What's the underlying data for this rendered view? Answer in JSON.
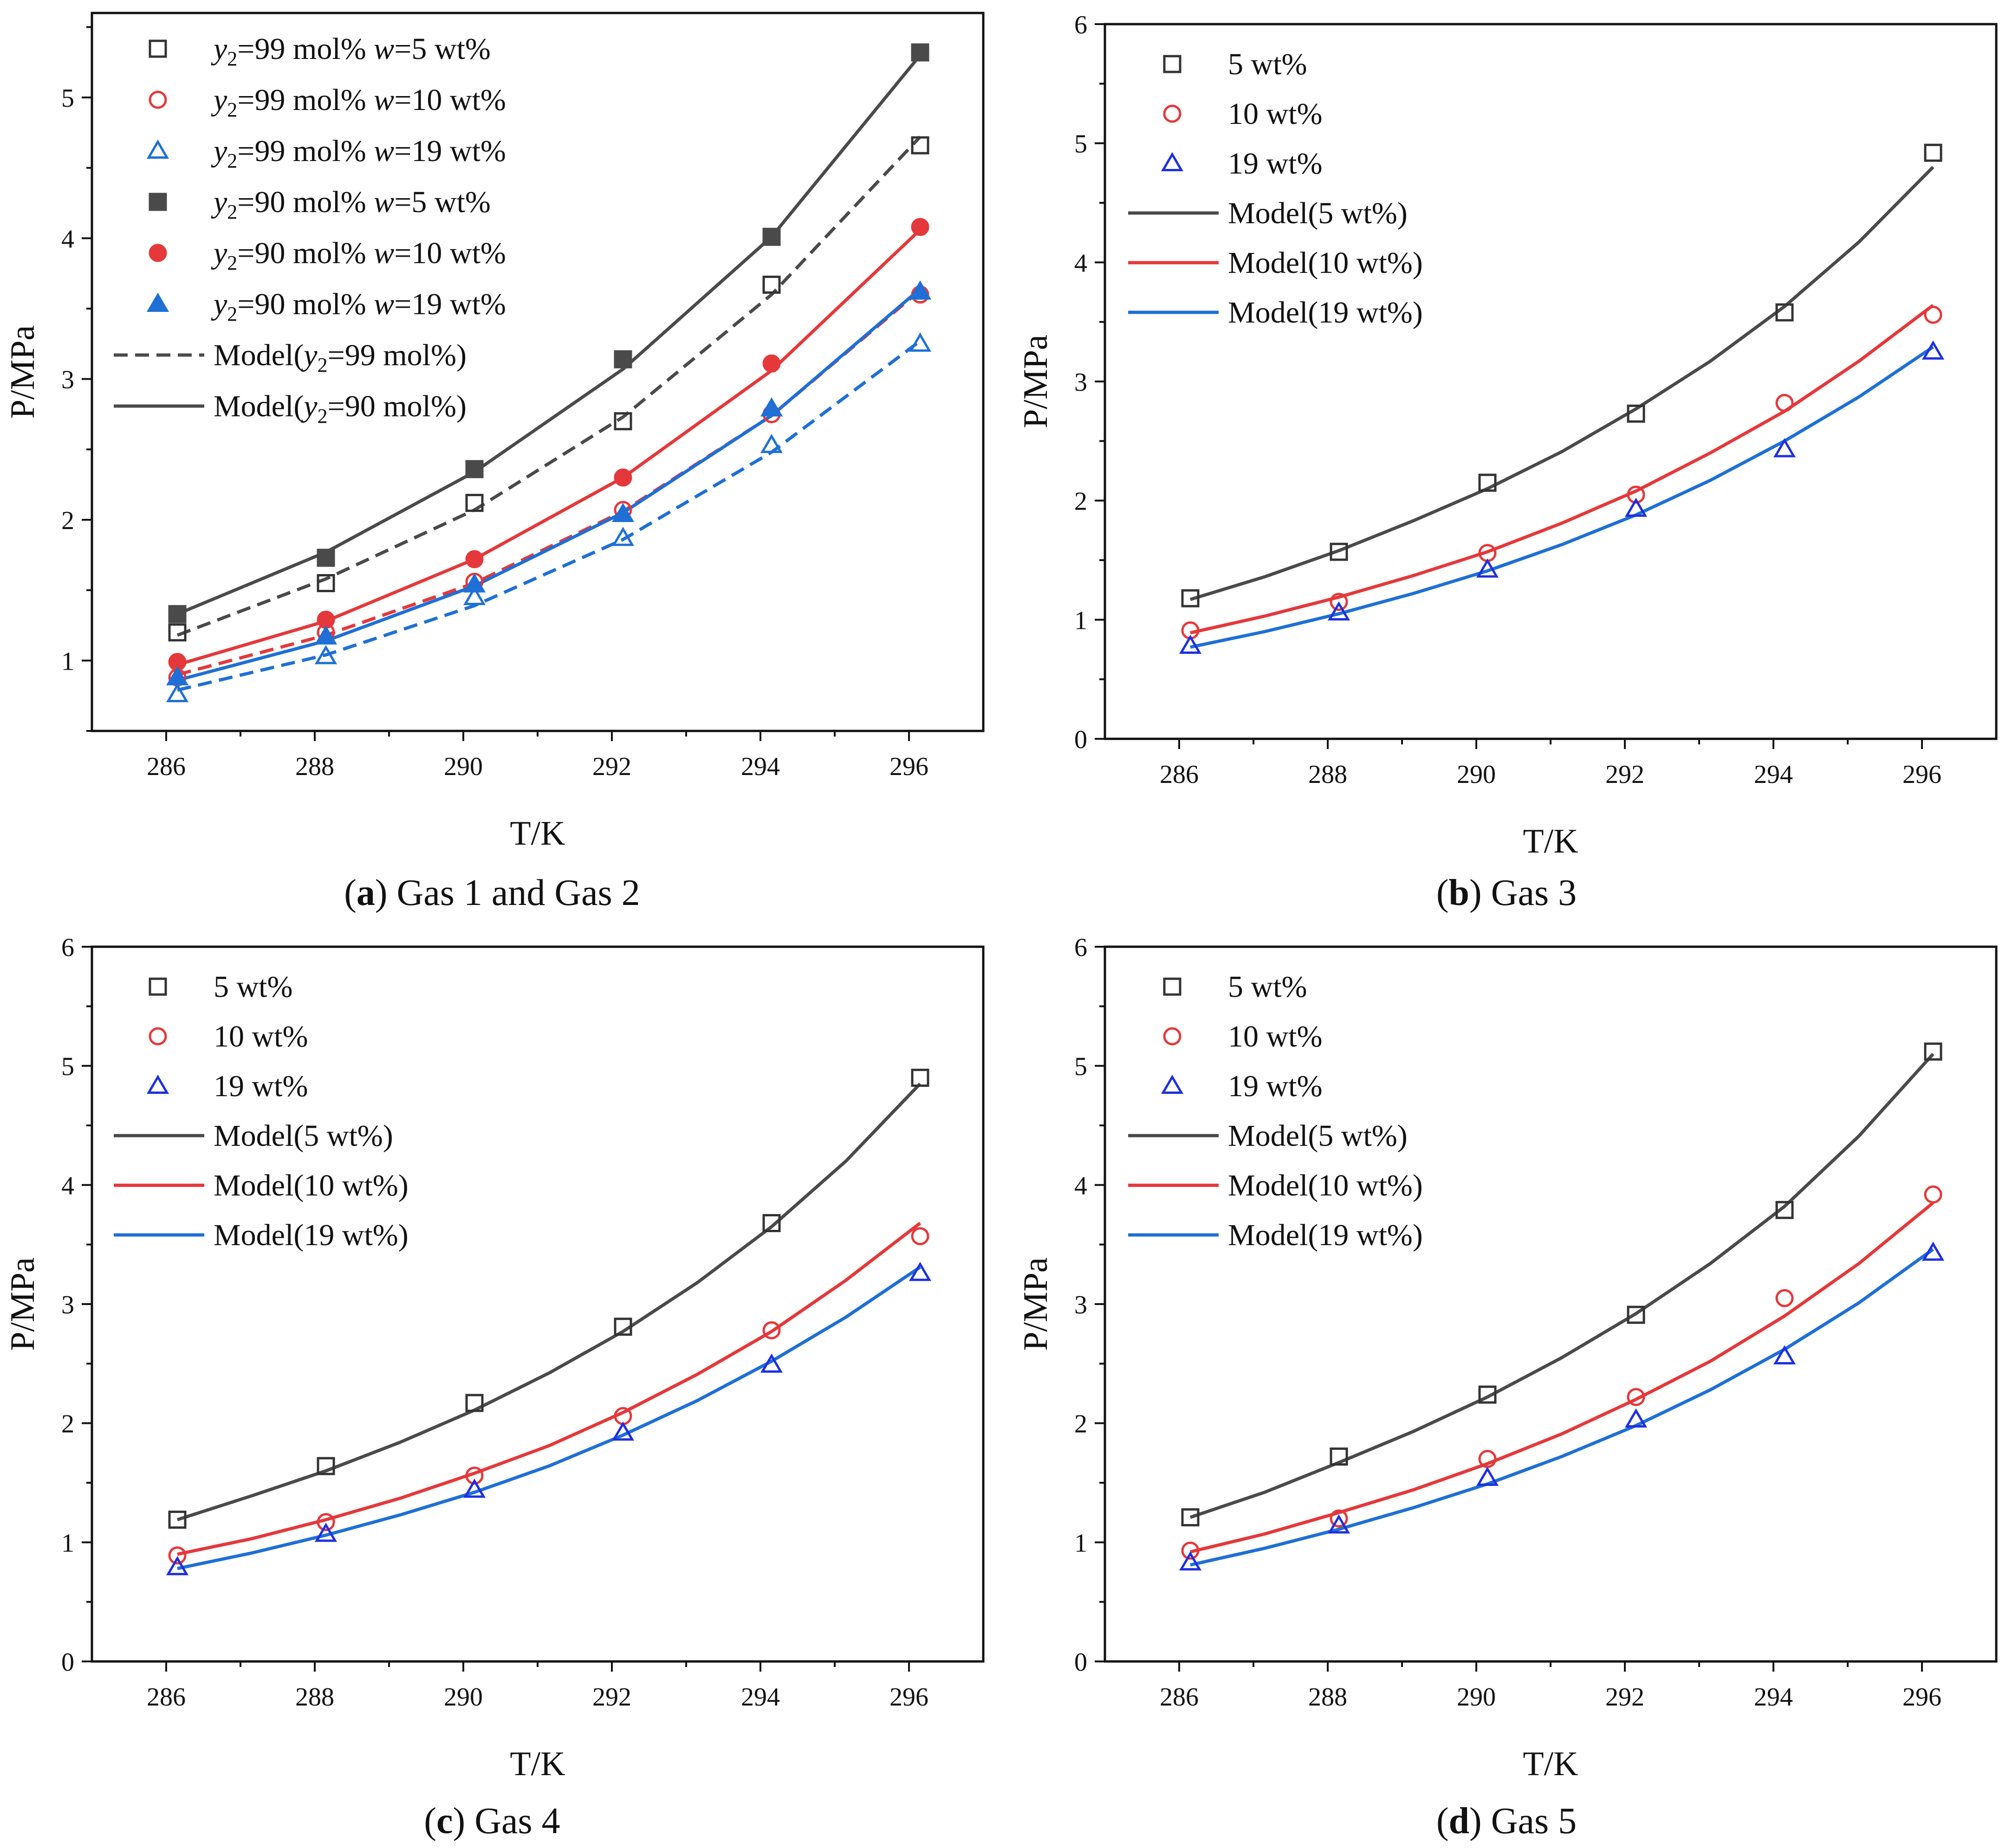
{
  "figure": {
    "charts": [
      {
        "id": "a",
        "caption_letter": "a",
        "caption_text": " Gas 1 and Gas 2"
      },
      {
        "id": "b",
        "caption_letter": "b",
        "caption_text": " Gas 3"
      },
      {
        "id": "c",
        "caption_letter": "c",
        "caption_text": " Gas 4"
      },
      {
        "id": "d",
        "caption_letter": "d",
        "caption_text": " Gas 5"
      }
    ]
  },
  "colors": {
    "black": "#222222",
    "dark_gray": "#4a4a4a",
    "red": "#e5383b",
    "blue": "#1f6fd6",
    "marker_blue": "#1f2fe0"
  },
  "chart_data": [
    {
      "type": "line",
      "panel": "a",
      "xlabel": "T/K",
      "ylabel": "P/MPa",
      "xlim": [
        285,
        297
      ],
      "ylim": [
        0.5,
        5.6
      ],
      "xticks": [
        286,
        288,
        290,
        292,
        294,
        296
      ],
      "yticks": [
        1,
        2,
        3,
        4,
        5
      ],
      "grid": false,
      "legend_position": "top-left",
      "series": [
        {
          "name": "y2=99 mol% w=5 wt%",
          "name_parts": [
            "y",
            "2",
            "=99 mol% ",
            "w",
            "=5 wt%"
          ],
          "kind": "marker",
          "marker": "square",
          "filled": false,
          "color": "#333333",
          "x": [
            286.15,
            288.15,
            290.15,
            292.15,
            294.15,
            296.15
          ],
          "y": [
            1.2,
            1.55,
            2.12,
            2.7,
            3.67,
            4.66
          ]
        },
        {
          "name": "y2=99 mol% w=10 wt%",
          "name_parts": [
            "y",
            "2",
            "=99 mol% ",
            "w",
            "=10 wt%"
          ],
          "kind": "marker",
          "marker": "circle",
          "filled": false,
          "color": "#e5383b",
          "x": [
            286.15,
            288.15,
            290.15,
            292.15,
            294.15,
            296.15
          ],
          "y": [
            0.88,
            1.2,
            1.56,
            2.07,
            2.75,
            3.6
          ]
        },
        {
          "name": "y2=99 mol% w=19 wt%",
          "name_parts": [
            "y",
            "2",
            "=99 mol% ",
            "w",
            "=19 wt%"
          ],
          "kind": "marker",
          "marker": "triangle",
          "filled": false,
          "color": "#1f6fd6",
          "x": [
            286.15,
            288.15,
            290.15,
            292.15,
            294.15,
            296.15
          ],
          "y": [
            0.76,
            1.03,
            1.45,
            1.87,
            2.53,
            3.25
          ]
        },
        {
          "name": "y2=90 mol% w=5 wt%",
          "name_parts": [
            "y",
            "2",
            "=90 mol% ",
            "w",
            "=5 wt%"
          ],
          "kind": "marker",
          "marker": "square",
          "filled": true,
          "color": "#4a4a4a",
          "x": [
            286.15,
            288.15,
            290.15,
            292.15,
            294.15,
            296.15
          ],
          "y": [
            1.33,
            1.73,
            2.36,
            3.14,
            4.01,
            5.32
          ]
        },
        {
          "name": "y2=90 mol% w=10 wt%",
          "name_parts": [
            "y",
            "2",
            "=90 mol% ",
            "w",
            "=10 wt%"
          ],
          "kind": "marker",
          "marker": "circle",
          "filled": true,
          "color": "#e5383b",
          "x": [
            286.15,
            288.15,
            290.15,
            292.15,
            294.15,
            296.15
          ],
          "y": [
            0.99,
            1.29,
            1.72,
            2.3,
            3.11,
            4.08
          ]
        },
        {
          "name": "y2=90 mol% w=19 wt%",
          "name_parts": [
            "y",
            "2",
            "=90 mol% ",
            "w",
            "=19 wt%"
          ],
          "kind": "marker",
          "marker": "triangle",
          "filled": true,
          "color": "#1f6fd6",
          "x": [
            286.15,
            288.15,
            290.15,
            292.15,
            294.15,
            296.15
          ],
          "y": [
            0.88,
            1.17,
            1.54,
            2.04,
            2.79,
            3.62
          ]
        },
        {
          "name": "Model(y2=99 mol%)",
          "name_parts": [
            "Model(",
            "y",
            "2",
            "=99 mol%)",
            ""
          ],
          "kind": "line",
          "dash": true,
          "color": "#4a4a4a",
          "x": [
            286.15,
            288.15,
            290.15,
            292.15,
            294.15,
            296.15
          ],
          "y": [
            1.18,
            1.58,
            2.07,
            2.73,
            3.6,
            4.72
          ]
        },
        {
          "name": "Model(y2=90 mol%)",
          "name_parts": [
            "Model(",
            "y",
            "2",
            "=90 mol%)",
            ""
          ],
          "kind": "line",
          "dash": false,
          "color": "#4a4a4a",
          "x": [
            286.15,
            288.15,
            290.15,
            292.15,
            294.15,
            296.15
          ],
          "y": [
            1.33,
            1.77,
            2.34,
            3.07,
            4.01,
            5.3
          ]
        },
        {
          "name": "",
          "kind": "line",
          "dash": true,
          "color": "#e5383b",
          "in_legend": false,
          "x": [
            286.15,
            288.15,
            290.15,
            292.15,
            294.15,
            296.15
          ],
          "y": [
            0.9,
            1.18,
            1.55,
            2.06,
            2.74,
            3.63
          ]
        },
        {
          "name": "",
          "kind": "line",
          "dash": false,
          "color": "#e5383b",
          "in_legend": false,
          "x": [
            286.15,
            288.15,
            290.15,
            292.15,
            294.15,
            296.15
          ],
          "y": [
            0.97,
            1.28,
            1.72,
            2.3,
            3.06,
            4.06
          ]
        },
        {
          "name": "",
          "kind": "line",
          "dash": true,
          "color": "#1f6fd6",
          "in_legend": false,
          "x": [
            286.15,
            288.15,
            290.15,
            292.15,
            294.15,
            296.15
          ],
          "y": [
            0.79,
            1.04,
            1.39,
            1.86,
            2.48,
            3.27
          ]
        },
        {
          "name": "",
          "kind": "line",
          "dash": false,
          "color": "#1f6fd6",
          "in_legend": false,
          "x": [
            286.15,
            288.15,
            290.15,
            292.15,
            294.15,
            296.15
          ],
          "y": [
            0.86,
            1.14,
            1.53,
            2.05,
            2.74,
            3.64
          ]
        }
      ]
    },
    {
      "type": "line",
      "panel": "b",
      "xlabel": "T/K",
      "ylabel": "P/MPa",
      "xlim": [
        285,
        297
      ],
      "ylim": [
        0,
        6
      ],
      "xticks": [
        286,
        288,
        290,
        292,
        294,
        296
      ],
      "yticks": [
        0,
        1,
        2,
        3,
        4,
        5,
        6
      ],
      "grid": false,
      "legend_position": "top-left",
      "series": [
        {
          "name": "5 wt%",
          "kind": "marker",
          "marker": "square",
          "filled": false,
          "color": "#333333",
          "x": [
            286.15,
            288.15,
            290.15,
            292.15,
            294.15,
            296.15
          ],
          "y": [
            1.18,
            1.57,
            2.15,
            2.73,
            3.58,
            4.92
          ]
        },
        {
          "name": "10 wt%",
          "kind": "marker",
          "marker": "circle",
          "filled": false,
          "color": "#e5383b",
          "x": [
            286.15,
            288.15,
            290.15,
            292.15,
            294.15,
            296.15
          ],
          "y": [
            0.91,
            1.15,
            1.56,
            2.05,
            2.82,
            3.56
          ]
        },
        {
          "name": "19 wt%",
          "kind": "marker",
          "marker": "triangle",
          "filled": false,
          "color": "#1f2fe0",
          "x": [
            286.15,
            288.15,
            290.15,
            292.15,
            294.15,
            296.15
          ],
          "y": [
            0.78,
            1.06,
            1.42,
            1.93,
            2.43,
            3.25
          ]
        },
        {
          "name": "Model(5 wt%)",
          "kind": "line",
          "dash": false,
          "color": "#4a4a4a",
          "x": [
            286.15,
            287.15,
            288.15,
            289.15,
            290.15,
            291.15,
            292.15,
            293.15,
            294.15,
            295.15,
            296.15
          ],
          "y": [
            1.17,
            1.36,
            1.58,
            1.83,
            2.1,
            2.41,
            2.77,
            3.17,
            3.63,
            4.17,
            4.8
          ]
        },
        {
          "name": "Model(10 wt%)",
          "kind": "line",
          "dash": false,
          "color": "#e5383b",
          "x": [
            286.15,
            287.15,
            288.15,
            289.15,
            290.15,
            291.15,
            292.15,
            293.15,
            294.15,
            295.15,
            296.15
          ],
          "y": [
            0.89,
            1.03,
            1.19,
            1.37,
            1.57,
            1.81,
            2.08,
            2.4,
            2.75,
            3.17,
            3.64
          ]
        },
        {
          "name": "Model(19 wt%)",
          "kind": "line",
          "dash": false,
          "color": "#1f6fd6",
          "x": [
            286.15,
            287.15,
            288.15,
            289.15,
            290.15,
            291.15,
            292.15,
            293.15,
            294.15,
            295.15,
            296.15
          ],
          "y": [
            0.77,
            0.9,
            1.05,
            1.22,
            1.41,
            1.63,
            1.88,
            2.17,
            2.5,
            2.87,
            3.29
          ]
        }
      ]
    },
    {
      "type": "line",
      "panel": "c",
      "xlabel": "T/K",
      "ylabel": "P/MPa",
      "xlim": [
        285,
        297
      ],
      "ylim": [
        0,
        6
      ],
      "xticks": [
        286,
        288,
        290,
        292,
        294,
        296
      ],
      "yticks": [
        0,
        1,
        2,
        3,
        4,
        5,
        6
      ],
      "grid": false,
      "legend_position": "top-left",
      "series": [
        {
          "name": "5 wt%",
          "kind": "marker",
          "marker": "square",
          "filled": false,
          "color": "#333333",
          "x": [
            286.15,
            288.15,
            290.15,
            292.15,
            294.15,
            296.15
          ],
          "y": [
            1.19,
            1.64,
            2.17,
            2.81,
            3.68,
            4.9
          ]
        },
        {
          "name": "10 wt%",
          "kind": "marker",
          "marker": "circle",
          "filled": false,
          "color": "#e5383b",
          "x": [
            286.15,
            288.15,
            290.15,
            292.15,
            294.15,
            296.15
          ],
          "y": [
            0.89,
            1.17,
            1.56,
            2.06,
            2.78,
            3.57
          ]
        },
        {
          "name": "19 wt%",
          "kind": "marker",
          "marker": "triangle",
          "filled": false,
          "color": "#1f2fe0",
          "x": [
            286.15,
            288.15,
            290.15,
            292.15,
            294.15,
            296.15
          ],
          "y": [
            0.79,
            1.07,
            1.44,
            1.92,
            2.49,
            3.26
          ]
        },
        {
          "name": "Model(5 wt%)",
          "kind": "line",
          "dash": false,
          "color": "#4a4a4a",
          "x": [
            286.15,
            287.15,
            288.15,
            289.15,
            290.15,
            291.15,
            292.15,
            293.15,
            294.15,
            295.15,
            296.15
          ],
          "y": [
            1.19,
            1.39,
            1.6,
            1.84,
            2.11,
            2.42,
            2.77,
            3.18,
            3.65,
            4.2,
            4.85
          ]
        },
        {
          "name": "Model(10 wt%)",
          "kind": "line",
          "dash": false,
          "color": "#e5383b",
          "x": [
            286.15,
            287.15,
            288.15,
            289.15,
            290.15,
            291.15,
            292.15,
            293.15,
            294.15,
            295.15,
            296.15
          ],
          "y": [
            0.9,
            1.03,
            1.19,
            1.37,
            1.58,
            1.81,
            2.09,
            2.41,
            2.77,
            3.2,
            3.68
          ]
        },
        {
          "name": "Model(19 wt%)",
          "kind": "line",
          "dash": false,
          "color": "#1f6fd6",
          "x": [
            286.15,
            287.15,
            288.15,
            289.15,
            290.15,
            291.15,
            292.15,
            293.15,
            294.15,
            295.15,
            296.15
          ],
          "y": [
            0.78,
            0.91,
            1.06,
            1.23,
            1.42,
            1.64,
            1.9,
            2.19,
            2.52,
            2.89,
            3.31
          ]
        }
      ]
    },
    {
      "type": "line",
      "panel": "d",
      "xlabel": "T/K",
      "ylabel": "P/MPa",
      "xlim": [
        285,
        297
      ],
      "ylim": [
        0,
        6
      ],
      "xticks": [
        286,
        288,
        290,
        292,
        294,
        296
      ],
      "yticks": [
        0,
        1,
        2,
        3,
        4,
        5,
        6
      ],
      "grid": false,
      "legend_position": "top-left",
      "series": [
        {
          "name": "5 wt%",
          "kind": "marker",
          "marker": "square",
          "filled": false,
          "color": "#333333",
          "x": [
            286.15,
            288.15,
            290.15,
            292.15,
            294.15,
            296.15
          ],
          "y": [
            1.21,
            1.72,
            2.24,
            2.91,
            3.79,
            5.12
          ]
        },
        {
          "name": "10 wt%",
          "kind": "marker",
          "marker": "circle",
          "filled": false,
          "color": "#e5383b",
          "x": [
            286.15,
            288.15,
            290.15,
            292.15,
            294.15,
            296.15
          ],
          "y": [
            0.93,
            1.2,
            1.7,
            2.22,
            3.05,
            3.92
          ]
        },
        {
          "name": "19 wt%",
          "kind": "marker",
          "marker": "triangle",
          "filled": false,
          "color": "#1f2fe0",
          "x": [
            286.15,
            288.15,
            290.15,
            292.15,
            294.15,
            296.15
          ],
          "y": [
            0.83,
            1.14,
            1.54,
            2.03,
            2.56,
            3.43
          ]
        },
        {
          "name": "Model(5 wt%)",
          "kind": "line",
          "dash": false,
          "color": "#4a4a4a",
          "x": [
            286.15,
            287.15,
            288.15,
            289.15,
            290.15,
            291.15,
            292.15,
            293.15,
            294.15,
            295.15,
            296.15
          ],
          "y": [
            1.21,
            1.42,
            1.67,
            1.93,
            2.22,
            2.55,
            2.92,
            3.34,
            3.82,
            4.41,
            5.1
          ]
        },
        {
          "name": "Model(10 wt%)",
          "kind": "line",
          "dash": false,
          "color": "#e5383b",
          "x": [
            286.15,
            287.15,
            288.15,
            289.15,
            290.15,
            291.15,
            292.15,
            293.15,
            294.15,
            295.15,
            296.15
          ],
          "y": [
            0.92,
            1.07,
            1.25,
            1.44,
            1.66,
            1.91,
            2.2,
            2.52,
            2.9,
            3.34,
            3.85
          ]
        },
        {
          "name": "Model(19 wt%)",
          "kind": "line",
          "dash": false,
          "color": "#1f6fd6",
          "x": [
            286.15,
            287.15,
            288.15,
            289.15,
            290.15,
            291.15,
            292.15,
            293.15,
            294.15,
            295.15,
            296.15
          ],
          "y": [
            0.81,
            0.95,
            1.11,
            1.29,
            1.49,
            1.72,
            1.98,
            2.28,
            2.62,
            3.01,
            3.46
          ]
        }
      ]
    }
  ]
}
